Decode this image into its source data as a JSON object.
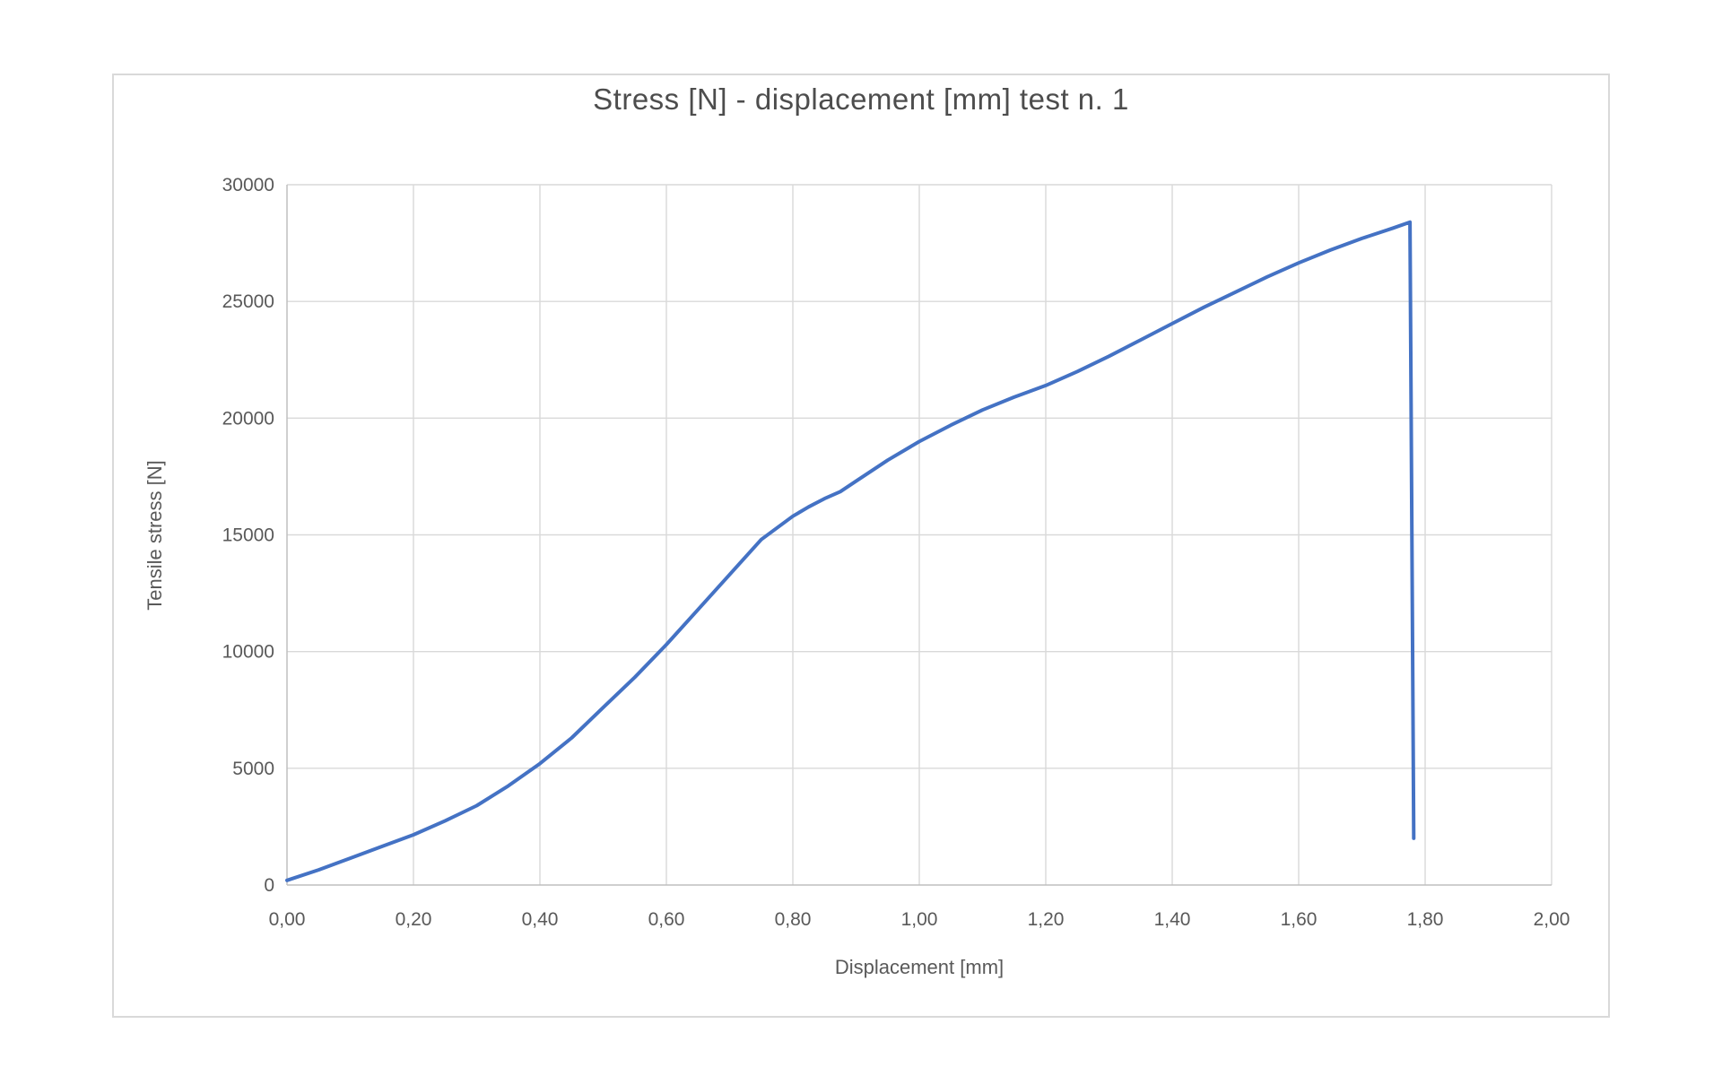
{
  "chart_data": {
    "type": "line",
    "title": "Stress [N] - displacement [mm] test n. 1",
    "xlabel": "Displacement [mm]",
    "ylabel": "Tensile stress [N]",
    "xlim": [
      0,
      2
    ],
    "ylim": [
      0,
      30000
    ],
    "grid": true,
    "legend": false,
    "xticks": [
      {
        "value": 0.0,
        "label": "0,00"
      },
      {
        "value": 0.2,
        "label": "0,20"
      },
      {
        "value": 0.4,
        "label": "0,40"
      },
      {
        "value": 0.6,
        "label": "0,60"
      },
      {
        "value": 0.8,
        "label": "0,80"
      },
      {
        "value": 1.0,
        "label": "1,00"
      },
      {
        "value": 1.2,
        "label": "1,20"
      },
      {
        "value": 1.4,
        "label": "1,40"
      },
      {
        "value": 1.6,
        "label": "1,60"
      },
      {
        "value": 1.8,
        "label": "1,80"
      },
      {
        "value": 2.0,
        "label": "2,00"
      }
    ],
    "yticks": [
      {
        "value": 0,
        "label": "0"
      },
      {
        "value": 5000,
        "label": "5000"
      },
      {
        "value": 10000,
        "label": "10000"
      },
      {
        "value": 15000,
        "label": "15000"
      },
      {
        "value": 20000,
        "label": "20000"
      },
      {
        "value": 25000,
        "label": "25000"
      },
      {
        "value": 30000,
        "label": "30000"
      }
    ],
    "colors": {
      "line": "#4472C4",
      "grid": "#D9D9D9",
      "axis": "#BFBFBF",
      "labels": "#595959",
      "title": "#4D4D4D",
      "frame_border": "#D9D9D9",
      "background": "#FFFFFF"
    },
    "series": [
      {
        "points": [
          [
            0.0,
            200
          ],
          [
            0.05,
            650
          ],
          [
            0.1,
            1150
          ],
          [
            0.15,
            1650
          ],
          [
            0.2,
            2150
          ],
          [
            0.25,
            2750
          ],
          [
            0.3,
            3400
          ],
          [
            0.35,
            4250
          ],
          [
            0.4,
            5200
          ],
          [
            0.45,
            6300
          ],
          [
            0.5,
            7600
          ],
          [
            0.55,
            8900
          ],
          [
            0.6,
            10300
          ],
          [
            0.65,
            11800
          ],
          [
            0.7,
            13300
          ],
          [
            0.75,
            14800
          ],
          [
            0.775,
            15300
          ],
          [
            0.8,
            15800
          ],
          [
            0.825,
            16200
          ],
          [
            0.85,
            16550
          ],
          [
            0.875,
            16850
          ],
          [
            0.9,
            17300
          ],
          [
            0.95,
            18200
          ],
          [
            1.0,
            19000
          ],
          [
            1.05,
            19700
          ],
          [
            1.1,
            20350
          ],
          [
            1.15,
            20900
          ],
          [
            1.2,
            21400
          ],
          [
            1.25,
            22000
          ],
          [
            1.3,
            22650
          ],
          [
            1.35,
            23350
          ],
          [
            1.4,
            24050
          ],
          [
            1.45,
            24750
          ],
          [
            1.5,
            25400
          ],
          [
            1.55,
            26050
          ],
          [
            1.6,
            26650
          ],
          [
            1.65,
            27200
          ],
          [
            1.7,
            27700
          ],
          [
            1.75,
            28150
          ],
          [
            1.776,
            28400
          ],
          [
            1.782,
            2000
          ]
        ]
      }
    ]
  }
}
